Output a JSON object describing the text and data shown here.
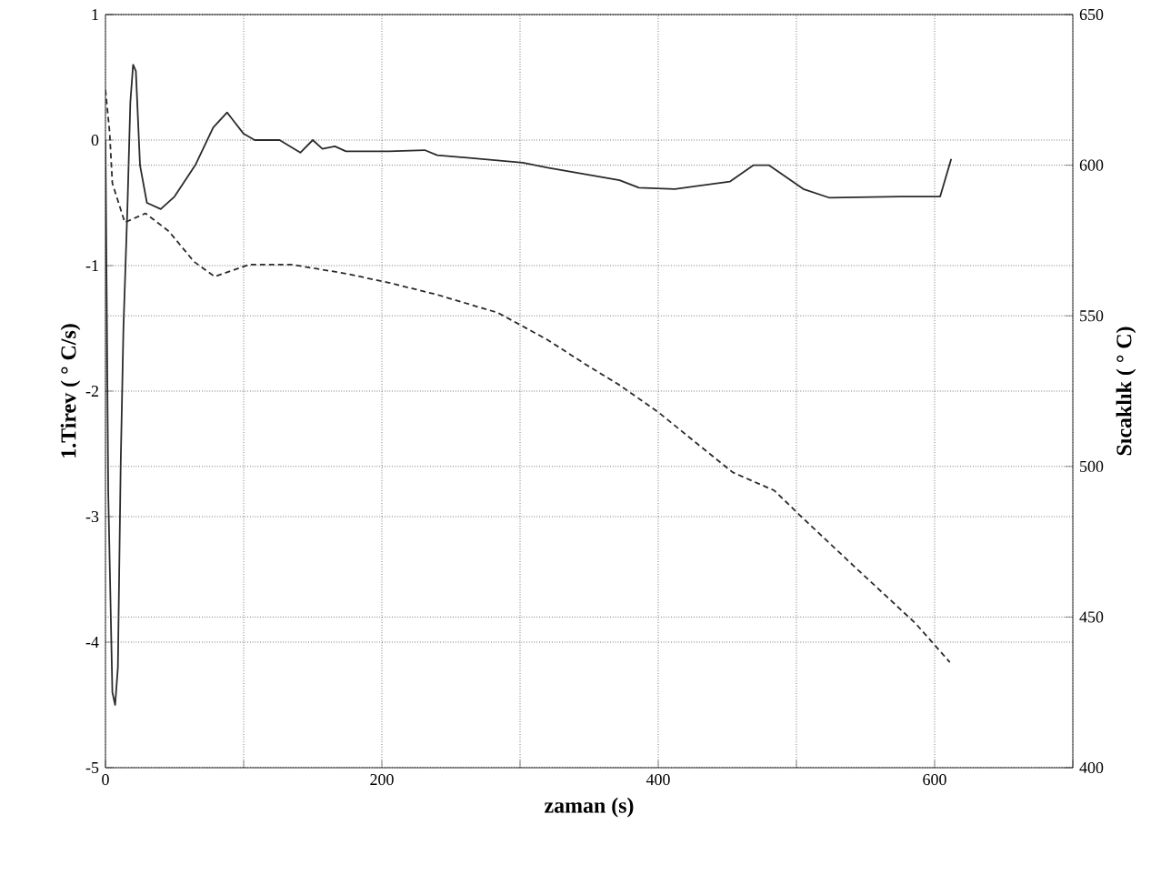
{
  "chart_data": {
    "type": "line",
    "xlabel": "zaman (s)",
    "ylabel": "1.Tirev ( ° C/s)",
    "y2label": "Sıcaklık ( ° C)",
    "xlim": [
      0,
      700
    ],
    "xticks": [
      0,
      {
        "value": 100,
        "label": null
      },
      200,
      {
        "value": 300,
        "label": null
      },
      400,
      {
        "value": 500,
        "label": null
      },
      600,
      {
        "value": 700,
        "label": null
      }
    ],
    "ylim": [
      -5,
      1
    ],
    "yticks": [
      -5,
      -4,
      -3,
      -2,
      -1,
      0,
      1
    ],
    "y2lim": [
      400,
      650
    ],
    "y2ticks": [
      400,
      450,
      500,
      550,
      600,
      650
    ],
    "grid": true,
    "series": [
      {
        "color": "#2a2a2a",
        "line_style": "solid",
        "x": [
          0,
          2,
          5,
          7,
          9,
          11,
          13,
          16,
          18,
          20,
          22,
          25,
          30,
          40,
          50,
          65,
          78,
          88,
          100,
          108,
          126,
          141,
          150,
          157,
          166,
          174,
          205,
          231,
          240,
          302,
          320,
          372,
          386,
          412,
          452,
          469,
          480,
          505,
          524,
          575,
          604,
          612
        ],
        "values": [
          0,
          -2.8,
          -4.4,
          -4.5,
          -4.2,
          -2.6,
          -1.5,
          -0.5,
          0.3,
          0.6,
          0.55,
          -0.2,
          -0.5,
          -0.55,
          -0.45,
          -0.2,
          0.1,
          0.22,
          0.05,
          0,
          0,
          -0.1,
          0,
          -0.07,
          -0.05,
          -0.09,
          -0.09,
          -0.08,
          -0.12,
          -0.18,
          -0.22,
          -0.32,
          -0.38,
          -0.39,
          -0.33,
          -0.2,
          -0.2,
          -0.39,
          -0.46,
          -0.45,
          -0.45,
          -0.15
        ]
      },
      {
        "color": "#2a2a2a",
        "line_style": "dashed",
        "axis": "y2",
        "x": [
          0,
          3,
          5,
          14,
          29,
          46,
          64,
          79,
          104,
          135,
          174,
          205,
          240,
          284,
          320,
          347,
          372,
          400,
          454,
          484,
          502,
          546,
          586,
          611
        ],
        "values": [
          625,
          611,
          594,
          581,
          584,
          578,
          568,
          563,
          567,
          567,
          564,
          561,
          557,
          551,
          542,
          534,
          527,
          518,
          498,
          492,
          484,
          465,
          448,
          435
        ]
      }
    ]
  }
}
